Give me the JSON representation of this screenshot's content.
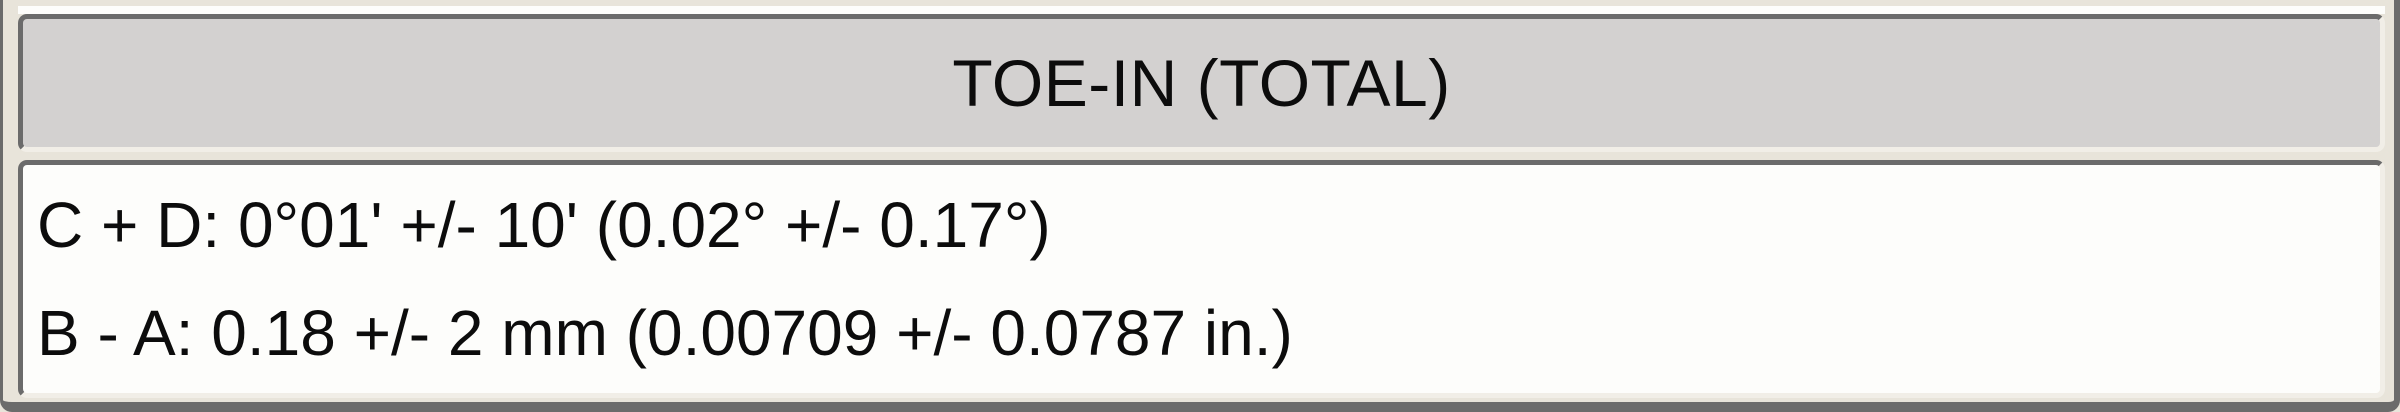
{
  "panel": {
    "title": "TOE-IN (TOTAL)",
    "rows": [
      {
        "label": "C + D:",
        "value": "0°01' +/- 10' (0.02° +/- 0.17°)"
      },
      {
        "label": "B - A:",
        "value": "0.18 +/- 2 mm (0.00709 +/- 0.0787 in.)"
      }
    ]
  },
  "colors": {
    "background": "#e8e4da",
    "header_fill": "#d3d1d0",
    "body_fill": "#fdfdfb",
    "border_dark": "#6b6b6b",
    "border_light": "#f1eee7",
    "text": "#0c0c0c"
  }
}
